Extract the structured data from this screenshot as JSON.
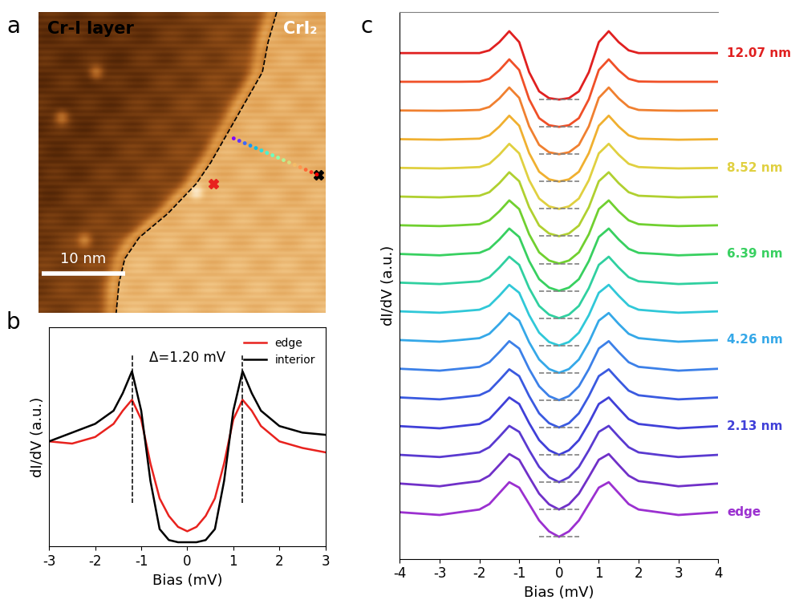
{
  "chart_data": [
    {
      "panel": "a",
      "type": "image",
      "labels": [
        "Cr-I layer",
        "CrI₂"
      ],
      "scale_bar": "10 nm"
    },
    {
      "panel": "b",
      "type": "line",
      "x": [
        -3,
        -2.5,
        -2,
        -1.6,
        -1.4,
        -1.2,
        -1.0,
        -0.8,
        -0.6,
        -0.4,
        -0.2,
        0,
        0.2,
        0.4,
        0.6,
        0.8,
        1.0,
        1.2,
        1.4,
        1.6,
        2,
        2.5,
        3
      ],
      "series": [
        {
          "name": "edge",
          "color": "#e8221e",
          "values": [
            0.48,
            0.47,
            0.5,
            0.56,
            0.62,
            0.67,
            0.58,
            0.38,
            0.22,
            0.14,
            0.09,
            0.07,
            0.09,
            0.14,
            0.22,
            0.38,
            0.58,
            0.67,
            0.62,
            0.55,
            0.48,
            0.45,
            0.43
          ]
        },
        {
          "name": "interior",
          "color": "#000000",
          "values": [
            0.48,
            0.52,
            0.56,
            0.62,
            0.7,
            0.8,
            0.62,
            0.3,
            0.08,
            0.03,
            0.02,
            0.02,
            0.02,
            0.03,
            0.08,
            0.3,
            0.62,
            0.8,
            0.7,
            0.62,
            0.55,
            0.52,
            0.51
          ]
        }
      ],
      "xlabel": "Bias (mV)",
      "ylabel": "dI/dV (a.u.)",
      "xlim": [
        -3,
        3
      ],
      "xticks": [
        -3,
        -2,
        -1,
        0,
        1,
        2,
        3
      ],
      "ylim": [
        0,
        1
      ],
      "tick_labels": "x",
      "legend": "upper right",
      "annotation": "Δ=1.20 mV",
      "gap_markers": [
        -1.2,
        1.2
      ]
    },
    {
      "panel": "c",
      "type": "line",
      "x": [
        -4,
        -3,
        -2.5,
        -2,
        -1.75,
        -1.5,
        -1.25,
        -1,
        -0.75,
        -0.5,
        -0.25,
        0,
        0.25,
        0.5,
        0.75,
        1,
        1.25,
        1.5,
        1.75,
        2,
        2.5,
        3,
        4
      ],
      "series": [
        {
          "name": "edge",
          "color": "#9b30d0",
          "offset": 0,
          "values": [
            0.9,
            0.8,
            0.9,
            1.0,
            1.2,
            1.6,
            2.0,
            1.8,
            1.2,
            0.6,
            0.2,
            0,
            0.2,
            0.6,
            1.2,
            1.8,
            2.0,
            1.6,
            1.2,
            1.0,
            0.9,
            0.8,
            0.9
          ]
        },
        {
          "color": "#7030c8",
          "offset": 1,
          "values": [
            0.95,
            0.85,
            0.95,
            1.04,
            1.24,
            1.63,
            2.03,
            1.82,
            1.19,
            0.58,
            0.19,
            0,
            0.19,
            0.58,
            1.19,
            1.82,
            2.03,
            1.63,
            1.24,
            1.04,
            0.95,
            0.85,
            0.95
          ]
        },
        {
          "color": "#5a3ad0",
          "offset": 2,
          "values": [
            1.0,
            0.92,
            1.0,
            1.09,
            1.28,
            1.66,
            2.06,
            1.84,
            1.17,
            0.56,
            0.18,
            0,
            0.18,
            0.56,
            1.17,
            1.84,
            2.06,
            1.66,
            1.28,
            1.09,
            1.0,
            0.92,
            1.0
          ]
        },
        {
          "name": "2.13 nm",
          "color": "#4040d8",
          "offset": 3,
          "values": [
            1.05,
            0.97,
            1.05,
            1.13,
            1.31,
            1.7,
            2.1,
            1.86,
            1.16,
            0.54,
            0.17,
            0,
            0.17,
            0.54,
            1.16,
            1.86,
            2.1,
            1.7,
            1.31,
            1.13,
            1.05,
            0.97,
            1.05
          ]
        },
        {
          "color": "#3a5ae0",
          "offset": 4,
          "values": [
            1.1,
            1.03,
            1.1,
            1.18,
            1.35,
            1.73,
            2.13,
            1.88,
            1.15,
            0.52,
            0.16,
            0,
            0.16,
            0.52,
            1.15,
            1.88,
            2.13,
            1.73,
            1.35,
            1.18,
            1.1,
            1.03,
            1.1
          ]
        },
        {
          "color": "#3c80e8",
          "offset": 5,
          "values": [
            1.15,
            1.08,
            1.15,
            1.22,
            1.39,
            1.76,
            2.16,
            1.89,
            1.14,
            0.51,
            0.15,
            0,
            0.15,
            0.51,
            1.14,
            1.89,
            2.16,
            1.76,
            1.39,
            1.22,
            1.15,
            1.08,
            1.15
          ]
        },
        {
          "name": "4.26 nm",
          "color": "#35a8e8",
          "offset": 6,
          "values": [
            1.2,
            1.14,
            1.2,
            1.27,
            1.43,
            1.79,
            2.19,
            1.91,
            1.12,
            0.49,
            0.14,
            0,
            0.14,
            0.49,
            1.12,
            1.91,
            2.19,
            1.79,
            1.43,
            1.27,
            1.2,
            1.14,
            1.2
          ]
        },
        {
          "color": "#30c8d8",
          "offset": 7,
          "values": [
            1.25,
            1.2,
            1.25,
            1.31,
            1.46,
            1.82,
            2.22,
            1.93,
            1.11,
            0.47,
            0.13,
            0,
            0.13,
            0.47,
            1.11,
            1.93,
            2.22,
            1.82,
            1.46,
            1.31,
            1.25,
            1.2,
            1.25
          ]
        },
        {
          "color": "#30d0a0",
          "offset": 8,
          "values": [
            1.3,
            1.25,
            1.3,
            1.35,
            1.5,
            1.85,
            2.25,
            1.95,
            1.1,
            0.45,
            0.13,
            0,
            0.13,
            0.45,
            1.1,
            1.95,
            2.25,
            1.85,
            1.5,
            1.35,
            1.3,
            1.25,
            1.3
          ]
        },
        {
          "name": "6.39 nm",
          "color": "#38d060",
          "offset": 9,
          "values": [
            1.35,
            1.3,
            1.35,
            1.39,
            1.54,
            1.88,
            2.28,
            1.97,
            1.09,
            0.43,
            0.12,
            0,
            0.12,
            0.43,
            1.09,
            1.97,
            2.28,
            1.88,
            1.54,
            1.39,
            1.35,
            1.3,
            1.35
          ]
        },
        {
          "color": "#70d030",
          "offset": 10,
          "values": [
            1.4,
            1.37,
            1.4,
            1.44,
            1.58,
            1.91,
            2.31,
            1.99,
            1.07,
            0.41,
            0.11,
            0,
            0.11,
            0.41,
            1.07,
            1.99,
            2.31,
            1.91,
            1.58,
            1.44,
            1.4,
            1.37,
            1.4
          ]
        },
        {
          "color": "#b0d030",
          "offset": 11,
          "values": [
            1.45,
            1.42,
            1.45,
            1.48,
            1.61,
            1.94,
            2.34,
            2.01,
            1.06,
            0.39,
            0.1,
            0,
            0.1,
            0.39,
            1.06,
            2.01,
            2.34,
            1.94,
            1.61,
            1.48,
            1.45,
            1.42,
            1.45
          ]
        },
        {
          "name": "8.52 nm",
          "color": "#e0d040",
          "offset": 12,
          "values": [
            1.5,
            1.48,
            1.5,
            1.53,
            1.65,
            1.98,
            2.38,
            2.03,
            1.05,
            0.38,
            0.09,
            0,
            0.09,
            0.38,
            1.05,
            2.03,
            2.38,
            1.98,
            1.65,
            1.53,
            1.5,
            1.48,
            1.5
          ]
        },
        {
          "color": "#f0b030",
          "offset": 13,
          "values": [
            1.55,
            1.53,
            1.55,
            1.57,
            1.69,
            2.01,
            2.41,
            2.04,
            1.04,
            0.36,
            0.08,
            0,
            0.08,
            0.36,
            1.04,
            2.04,
            2.41,
            2.01,
            1.69,
            1.57,
            1.55,
            1.53,
            1.55
          ]
        },
        {
          "color": "#f08030",
          "offset": 14,
          "values": [
            1.6,
            1.59,
            1.6,
            1.62,
            1.73,
            2.04,
            2.44,
            2.06,
            1.02,
            0.34,
            0.07,
            0,
            0.07,
            0.34,
            1.02,
            2.06,
            2.44,
            2.04,
            1.73,
            1.62,
            1.6,
            1.59,
            1.6
          ]
        },
        {
          "color": "#f05028",
          "offset": 15,
          "values": [
            1.65,
            1.65,
            1.65,
            1.66,
            1.76,
            2.07,
            2.47,
            2.08,
            1.01,
            0.32,
            0.06,
            0,
            0.06,
            0.32,
            1.01,
            2.08,
            2.47,
            2.07,
            1.76,
            1.66,
            1.65,
            1.65,
            1.65
          ]
        },
        {
          "name": "12.07 nm",
          "color": "#e02020",
          "offset": 16,
          "values": [
            1.7,
            1.7,
            1.7,
            1.7,
            1.8,
            2.1,
            2.5,
            2.1,
            1.0,
            0.3,
            0.05,
            0,
            0.05,
            0.3,
            1.0,
            2.1,
            2.5,
            2.1,
            1.8,
            1.7,
            1.7,
            1.7,
            1.7
          ]
        }
      ],
      "xlabel": "Bias (mV)",
      "ylabel": "dI/dV (a.u.)",
      "xlim": [
        -4,
        4
      ],
      "xticks": [
        -4,
        -3,
        -2,
        -1,
        0,
        1,
        2,
        3,
        4
      ],
      "ylim": [
        -0.8,
        19.2
      ],
      "tick_labels": "x"
    }
  ]
}
